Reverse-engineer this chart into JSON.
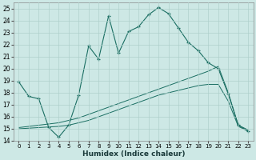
{
  "xlabel": "Humidex (Indice chaleur)",
  "ylabel": "",
  "background_color": "#cde8e5",
  "grid_color": "#afd0cc",
  "line_color": "#1a6e62",
  "xlim": [
    -0.5,
    23.5
  ],
  "ylim": [
    14,
    25.5
  ],
  "yticks": [
    14,
    15,
    16,
    17,
    18,
    19,
    20,
    21,
    22,
    23,
    24,
    25
  ],
  "xticks": [
    0,
    1,
    2,
    3,
    4,
    5,
    6,
    7,
    8,
    9,
    10,
    11,
    12,
    13,
    14,
    15,
    16,
    17,
    18,
    19,
    20,
    21,
    22,
    23
  ],
  "line1_x": [
    0,
    1,
    2,
    3,
    4,
    5,
    6,
    7,
    8,
    9,
    10,
    11,
    12,
    13,
    14,
    15,
    16,
    17,
    18,
    19,
    20,
    21,
    22,
    23
  ],
  "line1_y": [
    18.9,
    17.7,
    17.5,
    15.1,
    14.3,
    15.3,
    17.8,
    21.9,
    20.8,
    24.4,
    21.3,
    23.1,
    23.5,
    24.5,
    25.1,
    24.6,
    23.4,
    22.2,
    21.5,
    20.5,
    20.0,
    17.9,
    15.3,
    14.8
  ],
  "line2_x": [
    0,
    1,
    2,
    3,
    4,
    5,
    6,
    7,
    8,
    9,
    10,
    11,
    12,
    13,
    14,
    15,
    16,
    17,
    18,
    19,
    20,
    21,
    22,
    23
  ],
  "line2_y": [
    15.1,
    15.2,
    15.3,
    15.4,
    15.5,
    15.7,
    15.9,
    16.2,
    16.5,
    16.8,
    17.1,
    17.4,
    17.7,
    18.0,
    18.3,
    18.6,
    18.9,
    19.2,
    19.5,
    19.8,
    20.2,
    18.0,
    15.3,
    14.9
  ],
  "line3_x": [
    0,
    1,
    2,
    3,
    4,
    5,
    6,
    7,
    8,
    9,
    10,
    11,
    12,
    13,
    14,
    15,
    16,
    17,
    18,
    19,
    20,
    21,
    22,
    23
  ],
  "line3_y": [
    15.0,
    15.05,
    15.1,
    15.15,
    15.2,
    15.3,
    15.5,
    15.7,
    16.0,
    16.3,
    16.6,
    16.9,
    17.2,
    17.5,
    17.8,
    18.0,
    18.2,
    18.4,
    18.6,
    18.7,
    18.7,
    17.3,
    15.2,
    14.8
  ]
}
